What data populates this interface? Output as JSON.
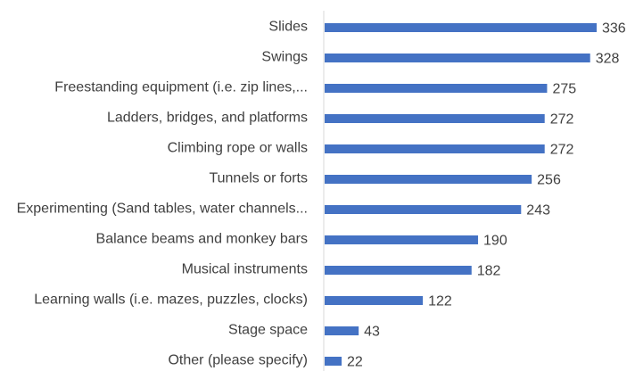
{
  "chart_data": {
    "type": "bar",
    "orientation": "horizontal",
    "categories": [
      "Slides",
      "Swings",
      "Freestanding equipment (i.e. zip lines,...",
      "Ladders, bridges, and platforms",
      "Climbing rope or walls",
      "Tunnels or forts",
      "Experimenting (Sand tables, water channels...",
      "Balance beams and monkey bars",
      "Musical instruments",
      "Learning walls (i.e. mazes, puzzles, clocks)",
      "Stage space",
      "Other (please specify)"
    ],
    "values": [
      336,
      328,
      275,
      272,
      272,
      256,
      243,
      190,
      182,
      122,
      43,
      22
    ],
    "title": "",
    "xlabel": "",
    "ylabel": "",
    "xlim": [
      0,
      360
    ],
    "grid": false,
    "legend": "none",
    "bar_color": "#4472C4",
    "axis_color": "#D9D9D9",
    "label_color": "#404040"
  }
}
